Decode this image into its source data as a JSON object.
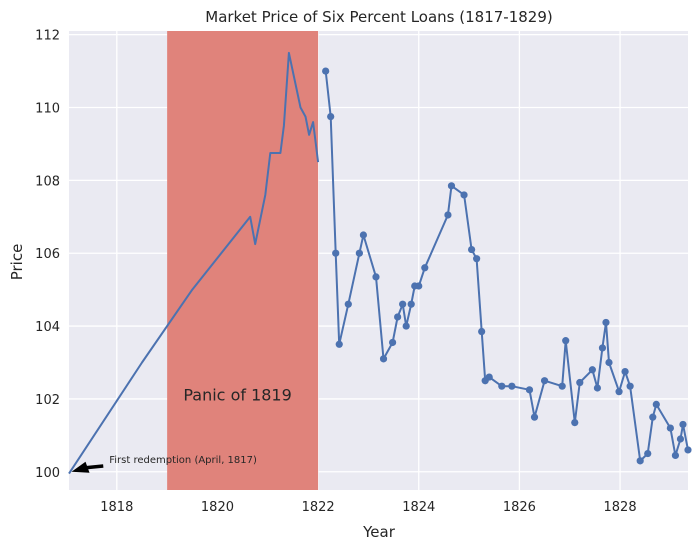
{
  "chart_data": {
    "type": "line",
    "title": "Market Price of Six Percent Loans (1817-1829)",
    "xlabel": "Year",
    "ylabel": "Price",
    "xlim": [
      1817.05,
      1829.35
    ],
    "ylim": [
      99.5,
      112.1
    ],
    "xticks": [
      1818,
      1820,
      1822,
      1824,
      1826,
      1828
    ],
    "yticks": [
      100,
      102,
      104,
      106,
      108,
      110,
      112
    ],
    "grid": true,
    "colors": {
      "line": "#4c72b0",
      "band": "#e0837b",
      "plot_bg": "#eaeaf2",
      "grid": "#ffffff",
      "arrow": "#000000"
    },
    "band": {
      "x_start": 1819.0,
      "x_end": 1822.0,
      "label": "Panic of 1819",
      "label_x": 1820.4,
      "label_y": 102.1
    },
    "annotation": {
      "text": "First redemption (April, 1817)",
      "point": [
        1817.1,
        100.0
      ],
      "text_pos": [
        1817.85,
        100.35
      ]
    },
    "series_lines": [
      {
        "x": [
          1817.05,
          1818.5,
          1819.5,
          1820.65,
          1820.75,
          1820.95,
          1821.05,
          1821.25,
          1821.32,
          1821.42,
          1821.65,
          1821.75,
          1821.82,
          1821.9,
          1822.0
        ],
        "y": [
          99.95,
          103.0,
          105.0,
          107.0,
          106.25,
          107.6,
          108.75,
          108.75,
          109.5,
          111.5,
          110.0,
          109.75,
          109.25,
          109.6,
          108.5
        ]
      }
    ],
    "series_markers": [
      {
        "x": [
          1822.15,
          1822.25,
          1822.35,
          1822.42,
          1822.6,
          1822.82,
          1822.9,
          1823.15,
          1823.3,
          1823.48,
          1823.58,
          1823.68,
          1823.75,
          1823.85,
          1823.92,
          1824.0,
          1824.12,
          1824.58,
          1824.65,
          1824.9,
          1825.05,
          1825.15,
          1825.25,
          1825.32,
          1825.4,
          1825.65,
          1825.85,
          1826.2,
          1826.3,
          1826.5,
          1826.85,
          1826.92,
          1827.1,
          1827.2,
          1827.45,
          1827.55,
          1827.65,
          1827.72,
          1827.78,
          1827.98,
          1828.1,
          1828.2,
          1828.4,
          1828.55,
          1828.65,
          1828.72,
          1829.0,
          1829.1,
          1829.2,
          1829.25,
          1829.35
        ],
        "y": [
          111.0,
          109.75,
          106.0,
          103.5,
          104.6,
          106.0,
          106.5,
          105.35,
          103.1,
          103.55,
          104.25,
          104.6,
          104.0,
          104.6,
          105.1,
          105.1,
          105.6,
          107.05,
          107.85,
          107.6,
          106.1,
          105.85,
          103.85,
          102.5,
          102.6,
          102.35,
          102.35,
          102.25,
          101.5,
          102.5,
          102.35,
          103.6,
          101.35,
          102.45,
          102.8,
          102.3,
          103.4,
          104.1,
          103.0,
          102.2,
          102.75,
          102.35,
          100.3,
          100.5,
          101.5,
          101.85,
          101.2,
          100.45,
          100.9,
          101.3,
          100.6
        ]
      }
    ]
  }
}
